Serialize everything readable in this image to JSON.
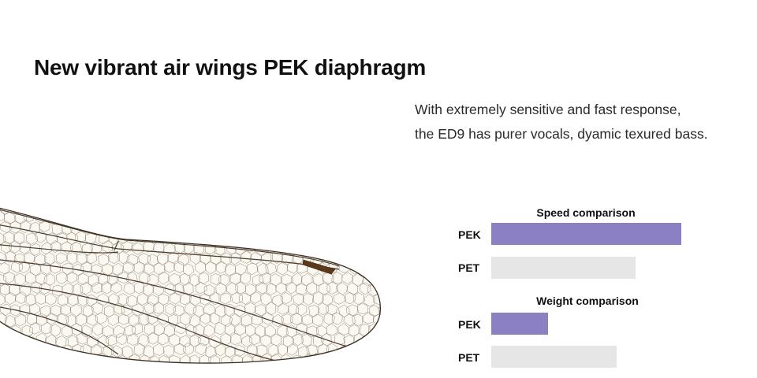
{
  "headline": "New vibrant air wings PEK diaphragm",
  "description": [
    "With extremely sensitive and fast response,",
    "the ED9 has purer vocals, dyamic texured bass."
  ],
  "image": {
    "icon": "dragonfly-wing-illustration"
  },
  "colors": {
    "highlight": "#8a80c2",
    "baseline": "#e6e6e6"
  },
  "chart_data": [
    {
      "type": "bar",
      "orientation": "horizontal",
      "title": "Speed comparison",
      "categories": [
        "PEK",
        "PET"
      ],
      "values": [
        100,
        76
      ],
      "xlim": [
        0,
        100
      ]
    },
    {
      "type": "bar",
      "orientation": "horizontal",
      "title": "Weight comparison",
      "categories": [
        "PEK",
        "PET"
      ],
      "values": [
        30,
        66
      ],
      "xlim": [
        0,
        100
      ]
    }
  ]
}
